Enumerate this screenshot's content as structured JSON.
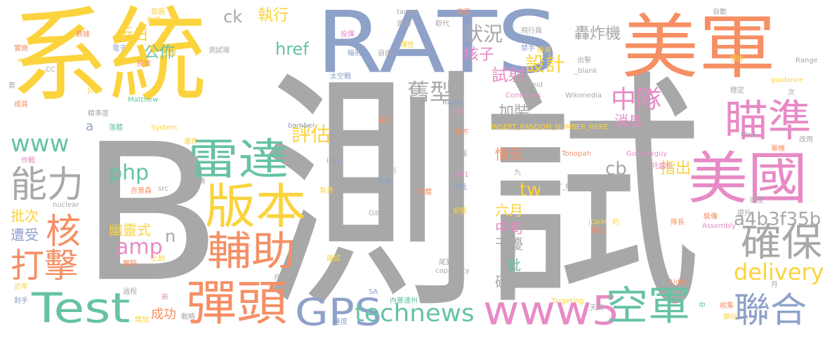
{
  "words": [
    {
      "text": "測試",
      "color": "#a8a8a8"
    },
    {
      "text": "B",
      "color": "#a8a8a8"
    },
    {
      "text": "系統",
      "color": "#fbd33c"
    },
    {
      "text": "RATS",
      "color": "#8ea1c9"
    },
    {
      "text": "美軍",
      "color": "#f68f64"
    },
    {
      "text": "美國",
      "color": "#e78ac5"
    },
    {
      "text": "瞄準",
      "color": "#e78ac5"
    },
    {
      "text": "雷達",
      "color": "#66c2a5"
    },
    {
      "text": "版本",
      "color": "#fbd33c"
    },
    {
      "text": "彈頭",
      "color": "#f68f64"
    },
    {
      "text": "輔助",
      "color": "#f68f64"
    },
    {
      "text": "Test",
      "color": "#66c2a5"
    },
    {
      "text": "GPS",
      "color": "#8ea1c9"
    },
    {
      "text": "www5",
      "color": "#e78ac5"
    },
    {
      "text": "空軍",
      "color": "#66c2a5"
    },
    {
      "text": "聯合",
      "color": "#8ea1c9"
    },
    {
      "text": "確保",
      "color": "#a8a8a8"
    },
    {
      "text": "technews",
      "color": "#66c2a5"
    },
    {
      "text": "能力",
      "color": "#a8a8a8"
    },
    {
      "text": "打擊",
      "color": "#f68f64"
    },
    {
      "text": "核",
      "color": "#f68f64"
    },
    {
      "text": "delivery",
      "color": "#fbd33c"
    },
    {
      "text": "a4b3f35b",
      "color": "#a8a8a8"
    },
    {
      "text": "中隊",
      "color": "#e78ac5"
    },
    {
      "text": "www",
      "color": "#66c2a5"
    },
    {
      "text": "php",
      "color": "#66c2a5"
    },
    {
      "text": "amp",
      "color": "#e78ac5"
    },
    {
      "text": "評估",
      "color": "#fbd33c"
    },
    {
      "text": "舊型",
      "color": "#a8a8a8"
    },
    {
      "text": "狀況",
      "color": "#a8a8a8"
    },
    {
      "text": "設計",
      "color": "#fbd33c"
    },
    {
      "text": "核子",
      "color": "#e78ac5"
    },
    {
      "text": "試射",
      "color": "#e78ac5"
    },
    {
      "text": "執行",
      "color": "#fbd33c"
    },
    {
      "text": "ck",
      "color": "#a8a8a8"
    },
    {
      "text": "近日",
      "color": "#fbd33c"
    },
    {
      "text": "公佈",
      "color": "#66c2a5"
    },
    {
      "text": "href",
      "color": "#66c2a5"
    },
    {
      "text": "轟炸機",
      "color": "#a8a8a8"
    },
    {
      "text": "tw",
      "color": "#fbd33c"
    },
    {
      "text": "cb",
      "color": "#a8a8a8"
    },
    {
      "text": "指出",
      "color": "#fbd33c"
    },
    {
      "text": "消息",
      "color": "#e78ac5"
    },
    {
      "text": "加裝",
      "color": "#a8a8a8"
    },
    {
      "text": "情況",
      "color": "#f68f64"
    },
    {
      "text": "批次",
      "color": "#fbd33c"
    },
    {
      "text": "遭受",
      "color": "#8ea1c9"
    },
    {
      "text": "幽靈式",
      "color": "#fbd33c"
    },
    {
      "text": "n",
      "color": "#a8a8a8"
    },
    {
      "text": "六月",
      "color": "#fbd33c"
    },
    {
      "text": "中旬",
      "color": "#e78ac5"
    },
    {
      "text": "干擾",
      "color": "#a8a8a8"
    },
    {
      "text": "批",
      "color": "#66c2a5"
    },
    {
      "text": "破壞",
      "color": "#a8a8a8"
    },
    {
      "text": "成功",
      "color": "#f68f64"
    },
    {
      "text": "a",
      "color": "#8ea1c9"
    },
    {
      "text": "首圖",
      "color": "#fbd33c"
    },
    {
      "text": "方式",
      "color": "#fbd33c"
    },
    {
      "text": "target",
      "color": "#a8a8a8"
    },
    {
      "text": "來源",
      "color": "#f68f64"
    },
    {
      "text": "投彈",
      "color": "#e78ac5"
    },
    {
      "text": "遊須",
      "color": "#a8a8a8"
    },
    {
      "text": "取代",
      "color": "#a8a8a8"
    },
    {
      "text": "飛行員",
      "color": "#a8a8a8"
    },
    {
      "text": "自動",
      "color": "#a8a8a8"
    },
    {
      "text": "數據",
      "color": "#f68f64"
    },
    {
      "text": "電子",
      "color": "#8ea1c9"
    },
    {
      "text": "實施",
      "color": "#f68f64"
    },
    {
      "text": "weapon",
      "color": "#fbd33c"
    },
    {
      "text": "角度",
      "color": "#fbd33c"
    },
    {
      "text": "測試場",
      "color": "#a8a8a8"
    },
    {
      "text": "瞄射",
      "color": "#8ea1c9"
    },
    {
      "text": "自由",
      "color": "#a8a8a8"
    },
    {
      "text": "彈性",
      "color": "#fbd33c"
    },
    {
      "text": "禁手",
      "color": "#8ea1c9"
    },
    {
      "text": "投資",
      "color": "#fbd33c"
    },
    {
      "text": "出擊",
      "color": "#a8a8a8"
    },
    {
      "text": "_blank",
      "color": "#a8a8a8"
    },
    {
      "text": "慣性",
      "color": "#fbd33c"
    },
    {
      "text": "Range",
      "color": "#a8a8a8"
    },
    {
      "text": "guidance",
      "color": "#fbd33c"
    },
    {
      "text": "CC",
      "color": "#a8a8a8"
    },
    {
      "text": "投放",
      "color": "#f68f64"
    },
    {
      "text": "太空戰",
      "color": "#8ea1c9"
    },
    {
      "text": "zoneid",
      "color": "#a8a8a8"
    },
    {
      "text": "套",
      "color": "#a8a8a8"
    },
    {
      "text": "Joint",
      "color": "#fbd33c"
    },
    {
      "text": "Commons",
      "color": "#e78ac5"
    },
    {
      "text": "Wikimedia",
      "color": "#a8a8a8"
    },
    {
      "text": "次",
      "color": "#a8a8a8"
    },
    {
      "text": "穩定",
      "color": "#a8a8a8"
    },
    {
      "text": "Matthew",
      "color": "#66c2a5"
    },
    {
      "text": "Radar",
      "color": "#8ea1c9"
    },
    {
      "text": "JTA",
      "color": "#e78ac5"
    },
    {
      "text": "成員",
      "color": "#f68f64"
    },
    {
      "text": "精準度",
      "color": "#a8a8a8"
    },
    {
      "text": "導引",
      "color": "#f68f64"
    },
    {
      "text": "落體",
      "color": "#66c2a5"
    },
    {
      "text": "System",
      "color": "#fbd33c"
    },
    {
      "text": "無不",
      "color": "#f68f64"
    },
    {
      "text": "bomber",
      "color": "#8ea1c9"
    },
    {
      "text": "INSERT_RANDOM_NUMBER_HERE",
      "color": "#fbd33c"
    },
    {
      "text": "avw",
      "color": "#a8a8a8"
    },
    {
      "text": "Mod",
      "color": "#a8a8a8"
    },
    {
      "text": "改用",
      "color": "#a8a8a8"
    },
    {
      "text": "運作",
      "color": "#fbd33c"
    },
    {
      "text": "單機",
      "color": "#f68f64"
    },
    {
      "text": "Goretexguy",
      "color": "#e78ac5"
    },
    {
      "text": "作戰",
      "color": "#e78ac5"
    },
    {
      "text": "img",
      "color": "#8ea1c9"
    },
    {
      "text": "大幅",
      "color": "#a8a8a8"
    },
    {
      "text": "Tonopah",
      "color": "#f68f64"
    },
    {
      "text": "托諾帕",
      "color": "#e78ac5"
    },
    {
      "text": "情形",
      "color": "#a8a8a8"
    },
    {
      "text": "B61",
      "color": "#e78ac5"
    },
    {
      "text": "九",
      "color": "#a8a8a8"
    },
    {
      "text": "具備",
      "color": "#8ea1c9"
    },
    {
      "text": "中低",
      "color": "#8ea1c9"
    },
    {
      "text": "INSERT_RANDO",
      "color": "#a8a8a8"
    },
    {
      "text": "衛星",
      "color": "#a8a8a8"
    },
    {
      "text": "吉普森",
      "color": "#f68f64"
    },
    {
      "text": "src",
      "color": "#a8a8a8"
    },
    {
      "text": "整淨頭",
      "color": "#a8a8a8"
    },
    {
      "text": "nuclear",
      "color": "#a8a8a8"
    },
    {
      "text": "負責",
      "color": "#fbd33c"
    },
    {
      "text": "軟體",
      "color": "#f68f64"
    },
    {
      "text": "Gibson",
      "color": "#a8a8a8"
    },
    {
      "text": "安裝",
      "color": "#fbd33c"
    },
    {
      "text": "提升",
      "color": "#a8a8a8"
    },
    {
      "text": "裝備",
      "color": "#f68f64"
    },
    {
      "text": "資訊",
      "color": "#a8a8a8"
    },
    {
      "text": "JDAM",
      "color": "#fbd33c"
    },
    {
      "text": "約",
      "color": "#fbd33c"
    },
    {
      "text": "現役",
      "color": "#f68f64"
    },
    {
      "text": "隊長",
      "color": "#f68f64"
    },
    {
      "text": "Assembly",
      "color": "#e78ac5"
    },
    {
      "text": "實驗",
      "color": "#f68f64"
    },
    {
      "text": "上尉",
      "color": "#fbd33c"
    },
    {
      "text": "確認",
      "color": "#fbd33c"
    },
    {
      "text": "尾翼",
      "color": "#a8a8a8"
    },
    {
      "text": "capability",
      "color": "#a8a8a8"
    },
    {
      "text": "升高",
      "color": "#a8a8a8"
    },
    {
      "text": "近年",
      "color": "#fbd33c"
    },
    {
      "text": "過程",
      "color": "#a8a8a8"
    },
    {
      "text": "Aided",
      "color": "#f68f64"
    },
    {
      "text": "月",
      "color": "#a8a8a8"
    },
    {
      "text": "對手",
      "color": "#8ea1c9"
    },
    {
      "text": "SA",
      "color": "#8ea1c9"
    },
    {
      "text": "內華達州",
      "color": "#66c2a5"
    },
    {
      "text": "新",
      "color": "#e78ac5"
    },
    {
      "text": "Targeting",
      "color": "#fbd33c"
    },
    {
      "text": "天氣",
      "color": "#a8a8a8"
    },
    {
      "text": "增加",
      "color": "#fbd33c"
    },
    {
      "text": "戰略",
      "color": "#a8a8a8"
    },
    {
      "text": "速度",
      "color": "#8ea1c9"
    },
    {
      "text": "中",
      "color": "#66c2a5"
    },
    {
      "text": "收集",
      "color": "#f68f64"
    },
    {
      "text": "類似",
      "color": "#fbd33c"
    }
  ]
}
